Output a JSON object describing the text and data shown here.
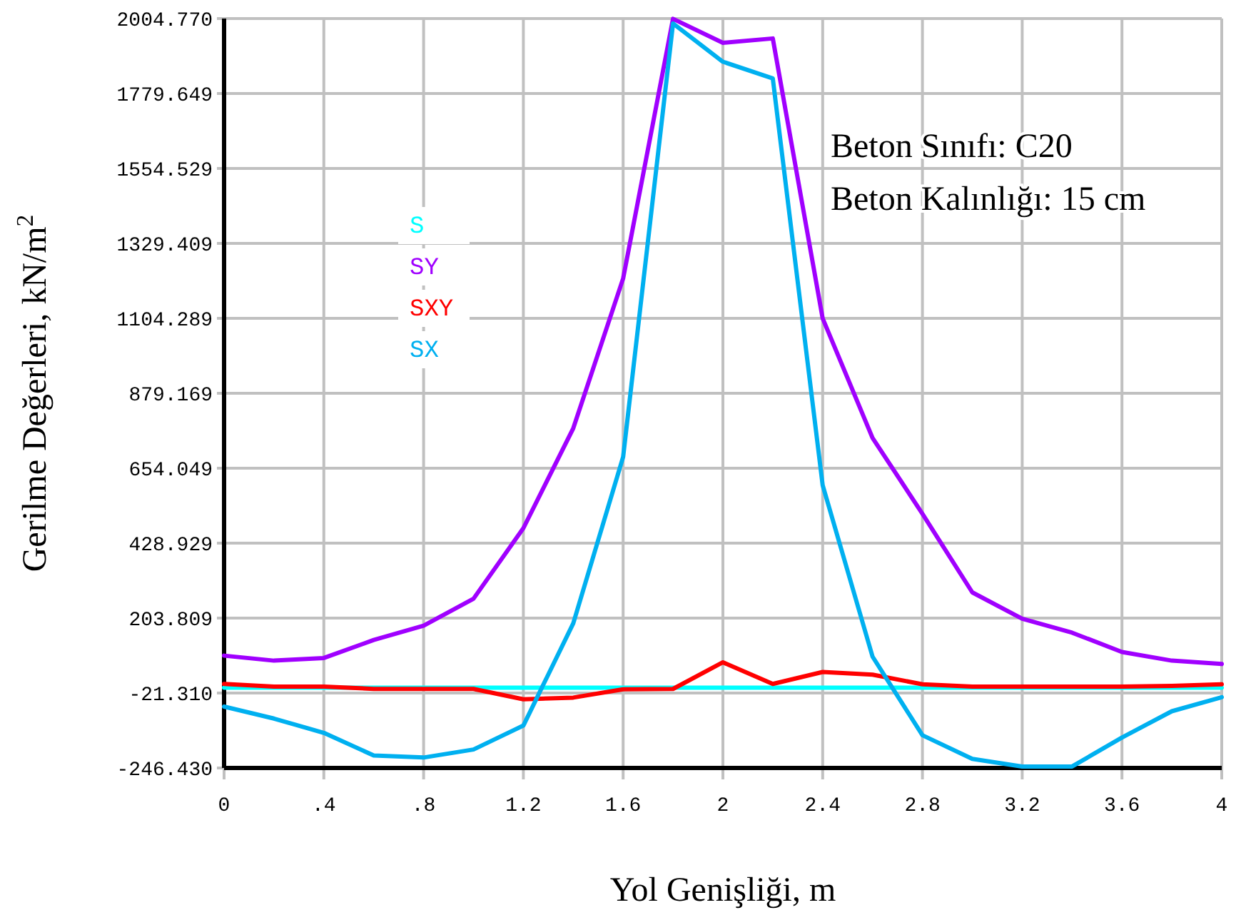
{
  "chart_data": {
    "type": "line",
    "xlabel": "Yol Genişliği, m",
    "ylabel": "Gerilme Değerleri, kN/m$^{2}$",
    "annotations": [
      "Beton Sınıfı: C20",
      "Beton Kalınlığı: 15 cm"
    ],
    "x": [
      0,
      0.2,
      0.4,
      0.6,
      0.8,
      1.0,
      1.2,
      1.4,
      1.6,
      1.8,
      2.0,
      2.2,
      2.4,
      2.6,
      2.8,
      3.0,
      3.2,
      3.4,
      3.6,
      3.8,
      4.0
    ],
    "series": [
      {
        "name": "S",
        "color": "#00ffff",
        "values": [
          -5,
          -5,
          -5,
          -5,
          -5,
          -5,
          -5,
          -5,
          -5,
          -5,
          -5,
          -5,
          -5,
          -5,
          -5,
          -5,
          -5,
          -5,
          -5,
          -5,
          -5
        ]
      },
      {
        "name": "SY",
        "color": "#a000ff",
        "values": [
          91,
          76,
          84,
          138,
          181,
          262,
          474,
          774,
          1224,
          2004,
          1932,
          1945,
          1104,
          745,
          517,
          281,
          202,
          160,
          102,
          76,
          66
        ]
      },
      {
        "name": "SXY",
        "color": "#ff0000",
        "values": [
          6,
          -2,
          -2,
          -9,
          -9,
          -9,
          -40,
          -35,
          -10,
          -9,
          71,
          6,
          42,
          34,
          5,
          -2,
          -2,
          -2,
          -2,
          0,
          5
        ]
      },
      {
        "name": "SX",
        "color": "#00b0f0",
        "values": [
          -62,
          -98,
          -141,
          -209,
          -215,
          -191,
          -119,
          188,
          688,
          1990,
          1875,
          1825,
          603,
          88,
          -148,
          -219,
          -242,
          -242,
          -155,
          -76,
          -34
        ]
      }
    ],
    "xlim": [
      0,
      4
    ],
    "ylim": [
      -246.43,
      2004.77
    ],
    "xticks": [
      0,
      {
        "value": 0.4,
        "label": ".4"
      },
      {
        "value": 0.8,
        "label": ".8"
      },
      1.2,
      1.6,
      2,
      2.4,
      2.8,
      3.2,
      3.6,
      4
    ],
    "yticks": [
      {
        "value": -246.43,
        "label": "-246.430"
      },
      {
        "value": -21.31,
        "label": "-21.310"
      },
      {
        "value": 203.809,
        "label": "203.809"
      },
      {
        "value": 428.929,
        "label": "428.929"
      },
      {
        "value": 654.049,
        "label": "654.049"
      },
      {
        "value": 879.169,
        "label": "879.169"
      },
      {
        "value": 1104.289,
        "label": "1104.289"
      },
      {
        "value": 1329.409,
        "label": "1329.409"
      },
      {
        "value": 1554.529,
        "label": "1554.529"
      },
      {
        "value": 1779.649,
        "label": "1779.649"
      },
      {
        "value": 2004.77,
        "label": "2004.770"
      }
    ],
    "grid": true,
    "legend": "top left",
    "marker": "none",
    "line_style": "solid"
  }
}
